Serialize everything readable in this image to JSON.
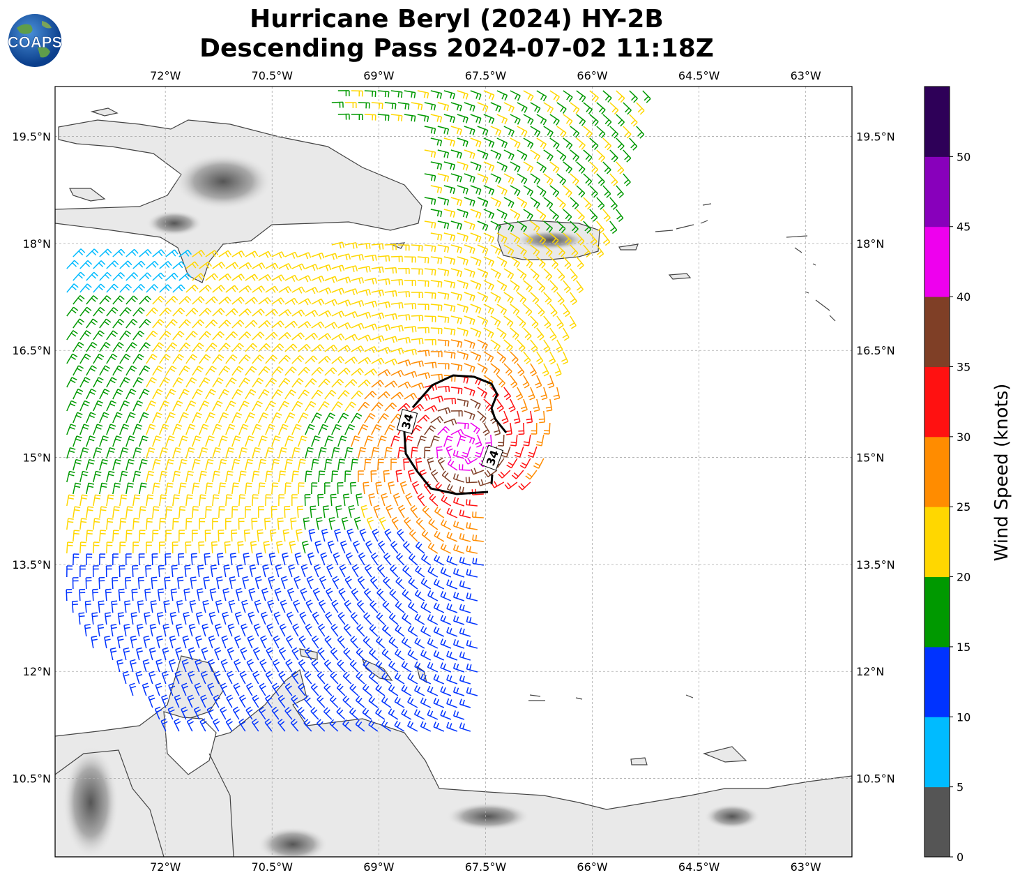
{
  "title": {
    "line1": "Hurricane Beryl (2024) HY-2B",
    "line2": "Descending Pass 2024-07-02 11:18Z"
  },
  "logo": {
    "text": "COAPS",
    "icon": "globe-logo-icon"
  },
  "map": {
    "lon_range": [
      -73.55,
      -62.35
    ],
    "lat_range": [
      9.4,
      20.2
    ],
    "lon_ticks": [
      "72°W",
      "70.5°W",
      "69°W",
      "67.5°W",
      "66°W",
      "64.5°W",
      "63°W"
    ],
    "lat_ticks": [
      "19.5°N",
      "18°N",
      "16.5°N",
      "15°N",
      "13.5°N",
      "12°N",
      "10.5°N"
    ],
    "grid": true,
    "contour": {
      "label": "34",
      "units": "knots"
    },
    "land_color": "#e8e8e8",
    "coast_color": "#444444"
  },
  "colorbar": {
    "label": "Wind Speed (knots)",
    "ticks": [
      "0",
      "5",
      "10",
      "15",
      "20",
      "25",
      "30",
      "35",
      "40",
      "45",
      "50"
    ],
    "colors": [
      "#555555",
      "#00bbff",
      "#0033ff",
      "#009900",
      "#ffd700",
      "#ff8c00",
      "#ff1111",
      "#7f3f26",
      "#ee00ee",
      "#8800bb",
      "#2e0058"
    ]
  }
}
